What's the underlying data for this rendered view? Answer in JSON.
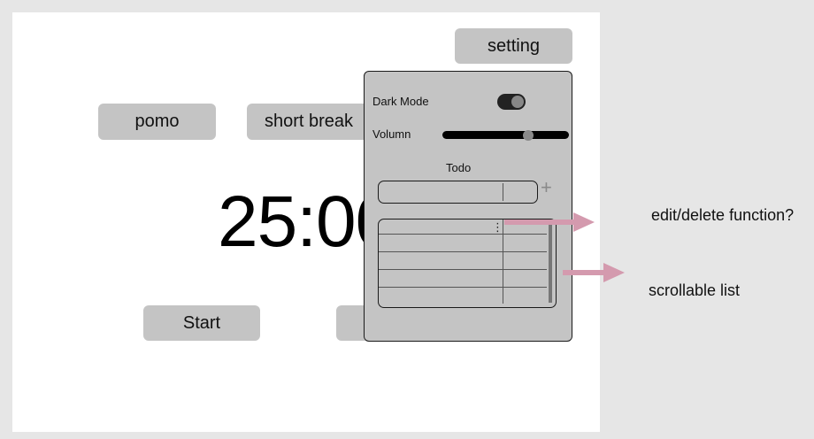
{
  "timer": {
    "display": "25:00",
    "buttons": {
      "setting": "setting",
      "pomo": "pomo",
      "short_break": "short break",
      "start": "Start"
    }
  },
  "settings_panel": {
    "dark_mode_label": "Dark Mode",
    "dark_mode_on": true,
    "volume_label": "Volumn",
    "volume_level": 0.68,
    "todo_title": "Todo",
    "add_symbol": "+",
    "more_symbol": "⋮"
  },
  "annotations": {
    "edit_delete": "edit/delete function?",
    "scrollable": "scrollable list"
  },
  "colors": {
    "button": "#c4c4c4",
    "arrow": "#d49aae"
  }
}
